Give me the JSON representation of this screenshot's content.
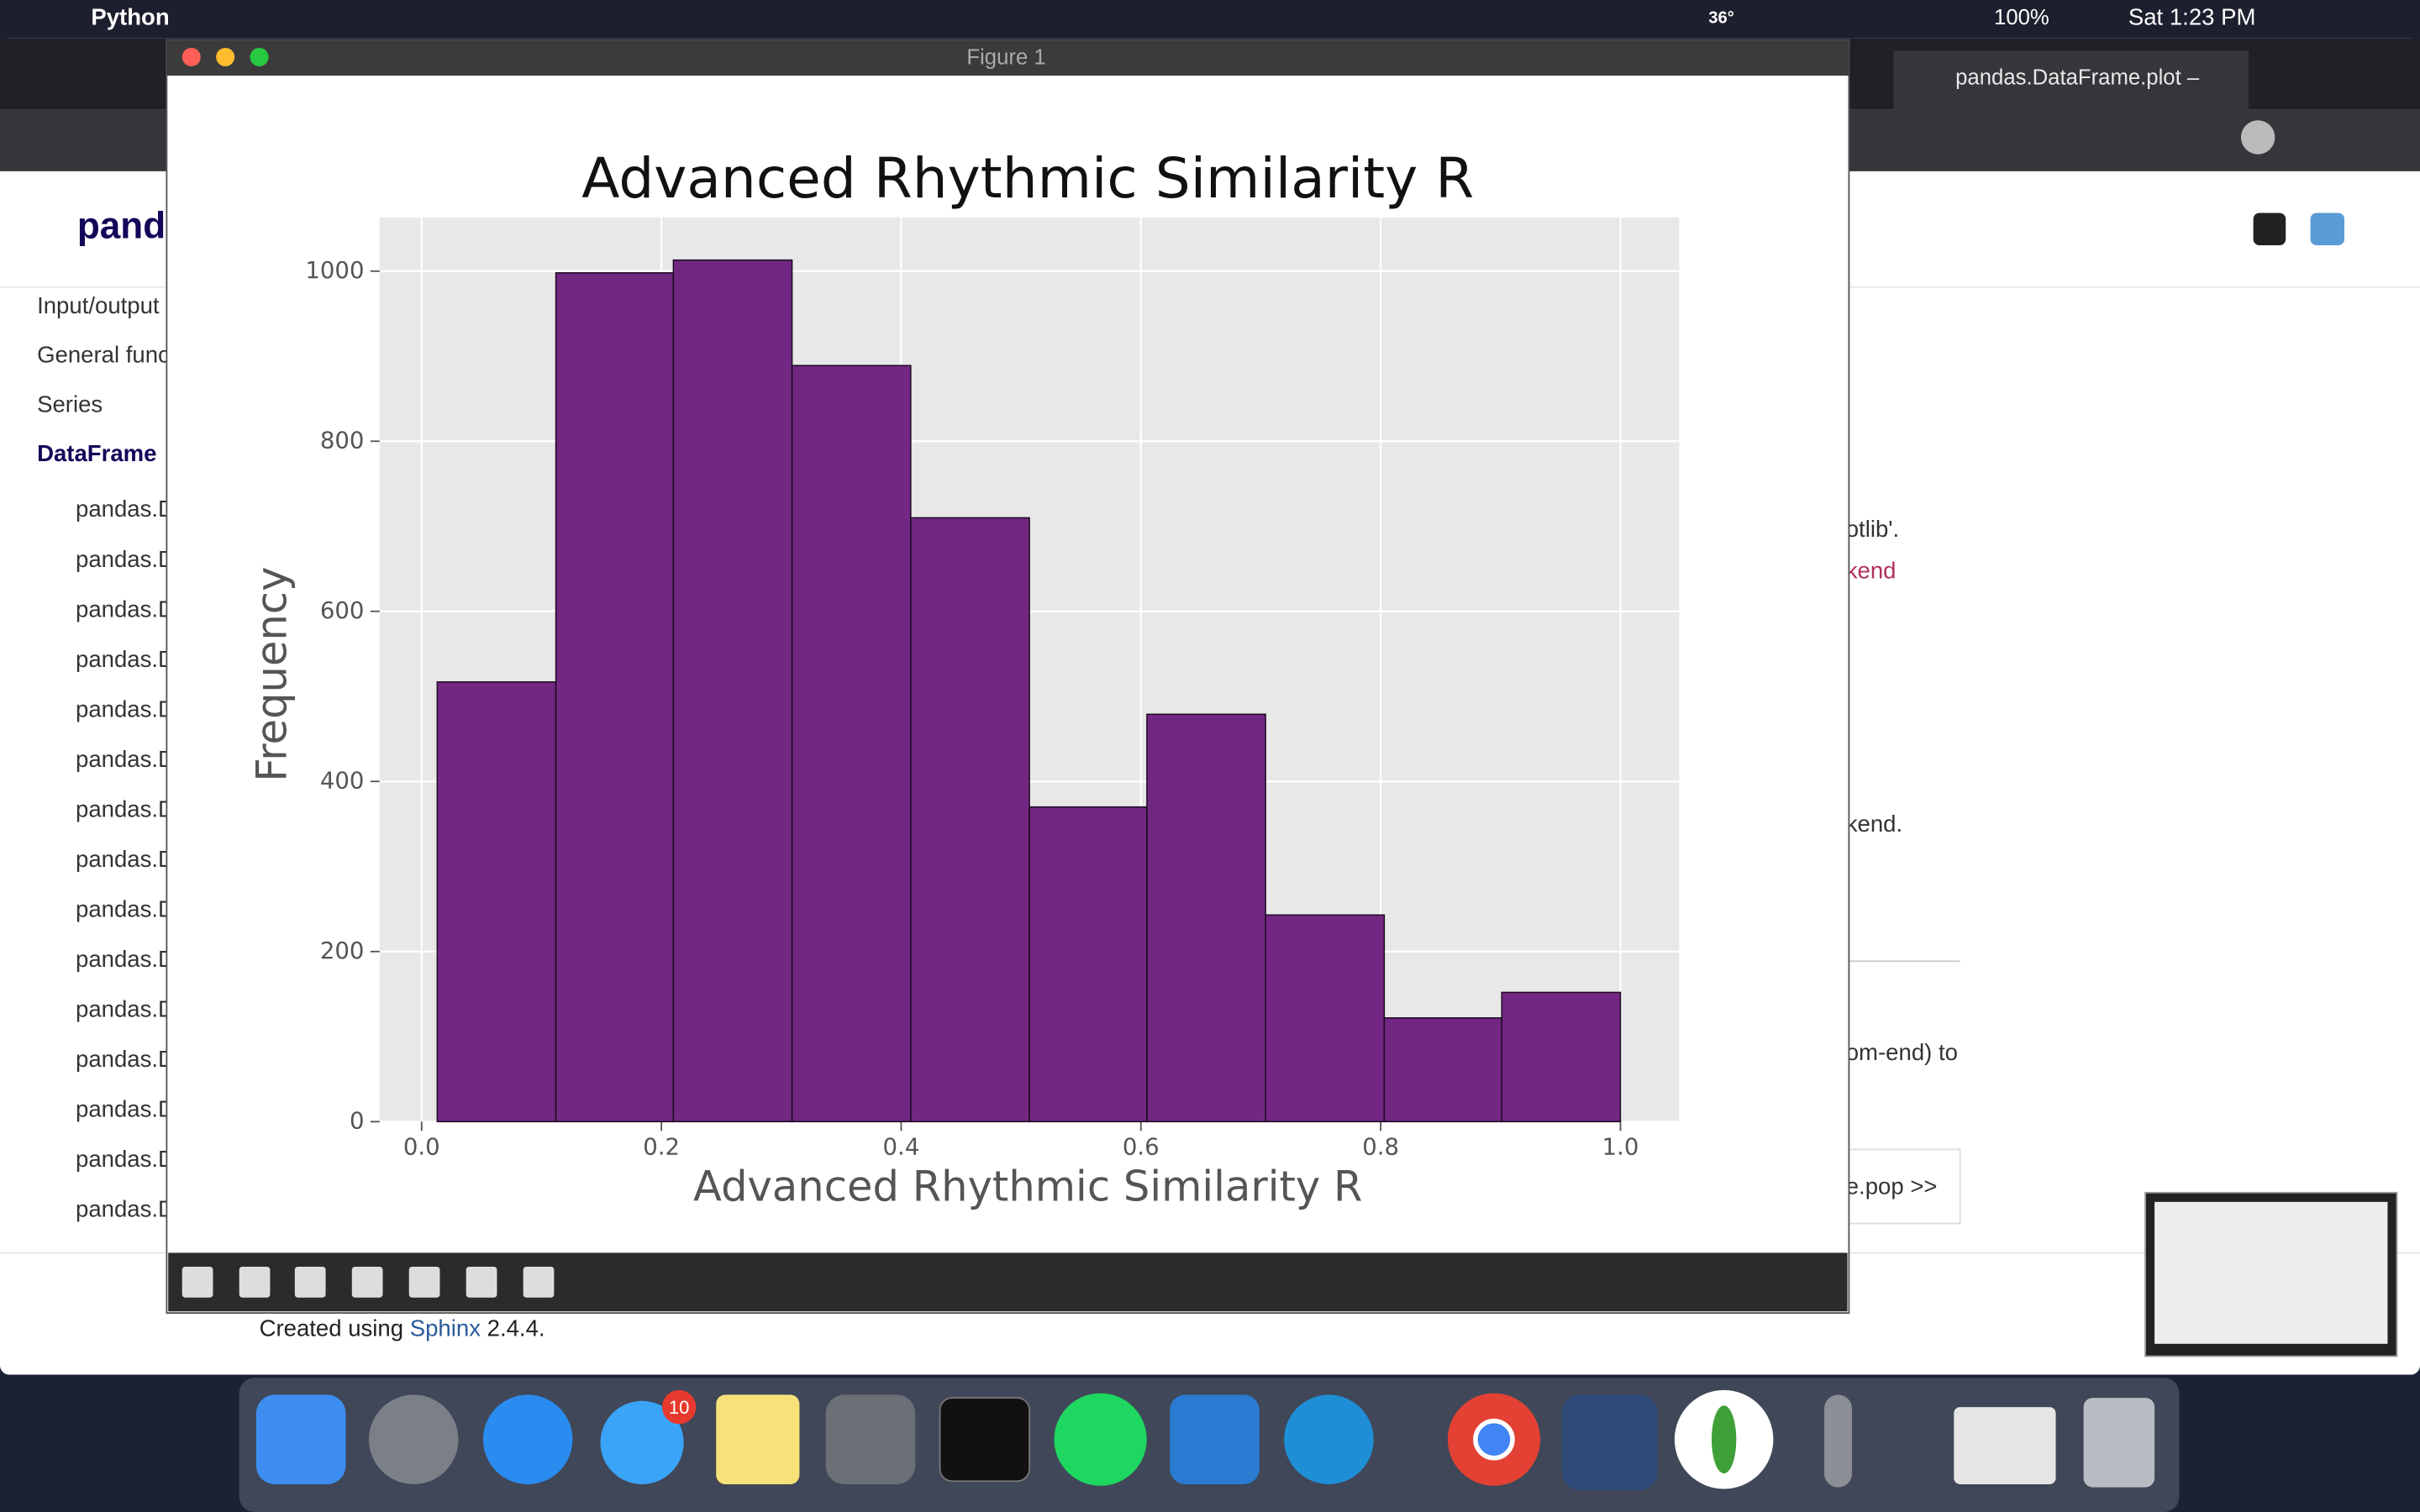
{
  "menu_bar": {
    "app": "Python",
    "temp": "36°",
    "battery": "100%",
    "clock": "Sat 1:23 PM"
  },
  "browser": {
    "tab_title": "pandas.DataFrame.plot –",
    "logo": "pand",
    "sidebar": [
      "Input/output",
      "General func",
      "Series",
      "DataFrame",
      "pandas.D",
      "pandas.D",
      "pandas.D",
      "pandas.D",
      "pandas.D",
      "pandas.D",
      "pandas.D",
      "pandas.D",
      "pandas.D",
      "pandas.D",
      "pandas.D",
      "pandas.D",
      "pandas.D",
      "pandas.D",
      "pandas.D"
    ],
    "fragments": [
      "otlib'.",
      "kend",
      "kend.",
      "om-end) to",
      "e.pop >>"
    ],
    "footer": {
      "prefix": "Created using ",
      "link": "Sphinx",
      "suffix": " 2.4.4."
    }
  },
  "window": {
    "title": "Figure 1"
  },
  "dock": {
    "badge": "10"
  },
  "chart_data": {
    "type": "histogram",
    "title": "Advanced Rhythmic Similarity R",
    "x_label": "Advanced Rhythmic Similarity R",
    "y_label": "Frequency",
    "bins": [
      0.013,
      0.112,
      0.21,
      0.309,
      0.408,
      0.507,
      0.605,
      0.704,
      0.803,
      0.901,
      1.0
    ],
    "values": [
      517,
      998,
      1013,
      889,
      710,
      370,
      479,
      243,
      122,
      152
    ],
    "color": "#722782",
    "edge_color": "#1a0a1f",
    "xlim": [
      -0.035,
      1.049
    ],
    "ylim": [
      0,
      1063
    ],
    "xticks": [
      {
        "value": 0,
        "label": "0.0"
      },
      {
        "value": 0.2,
        "label": "0.2"
      },
      {
        "value": 0.4,
        "label": "0.4"
      },
      {
        "value": 0.6,
        "label": "0.6"
      },
      {
        "value": 0.8,
        "label": "0.8"
      },
      {
        "value": 1,
        "label": "1.0"
      }
    ],
    "yticks": [
      0,
      200,
      400,
      600,
      800,
      1000
    ],
    "grid": true
  }
}
